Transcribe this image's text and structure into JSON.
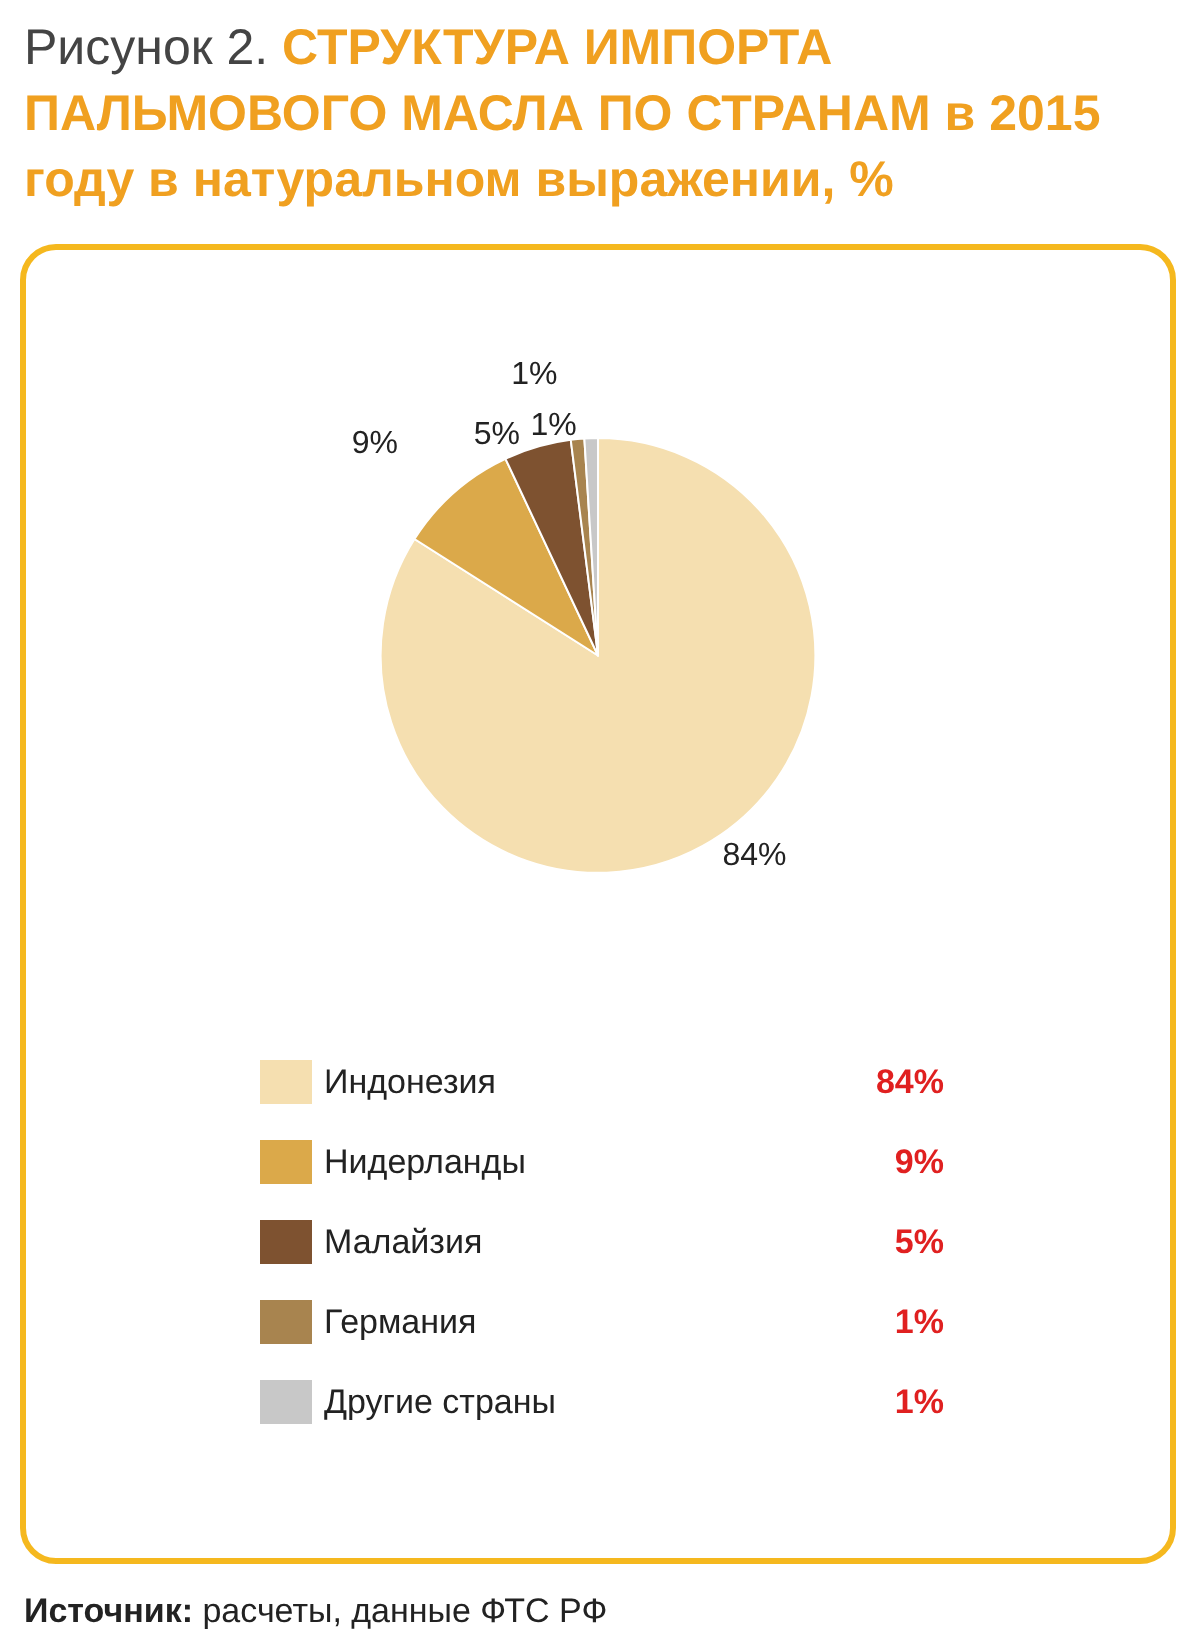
{
  "chart_data": {
    "type": "pie",
    "title": "Рисунок 2. СТРУКТУРА ИМПОРТА ПАЛЬМОВОГО МАСЛА ПО СТРАНАМ в 2015 году в натуральном выражении, %",
    "categories": [
      "Индонезия",
      "Нидерланды",
      "Малайзия",
      "Германия",
      "Другие страны"
    ],
    "values": [
      84,
      9,
      5,
      1,
      1
    ],
    "value_labels": [
      "84%",
      "9%",
      "5%",
      "1%",
      "1%"
    ],
    "colors": [
      "#f5dfb0",
      "#dba94a",
      "#7e5230",
      "#a8844f",
      "#c8c8c8"
    ],
    "legend": "bottom",
    "annotations": [
      "Источник: расчеты, данные ФТС РФ"
    ]
  }
}
